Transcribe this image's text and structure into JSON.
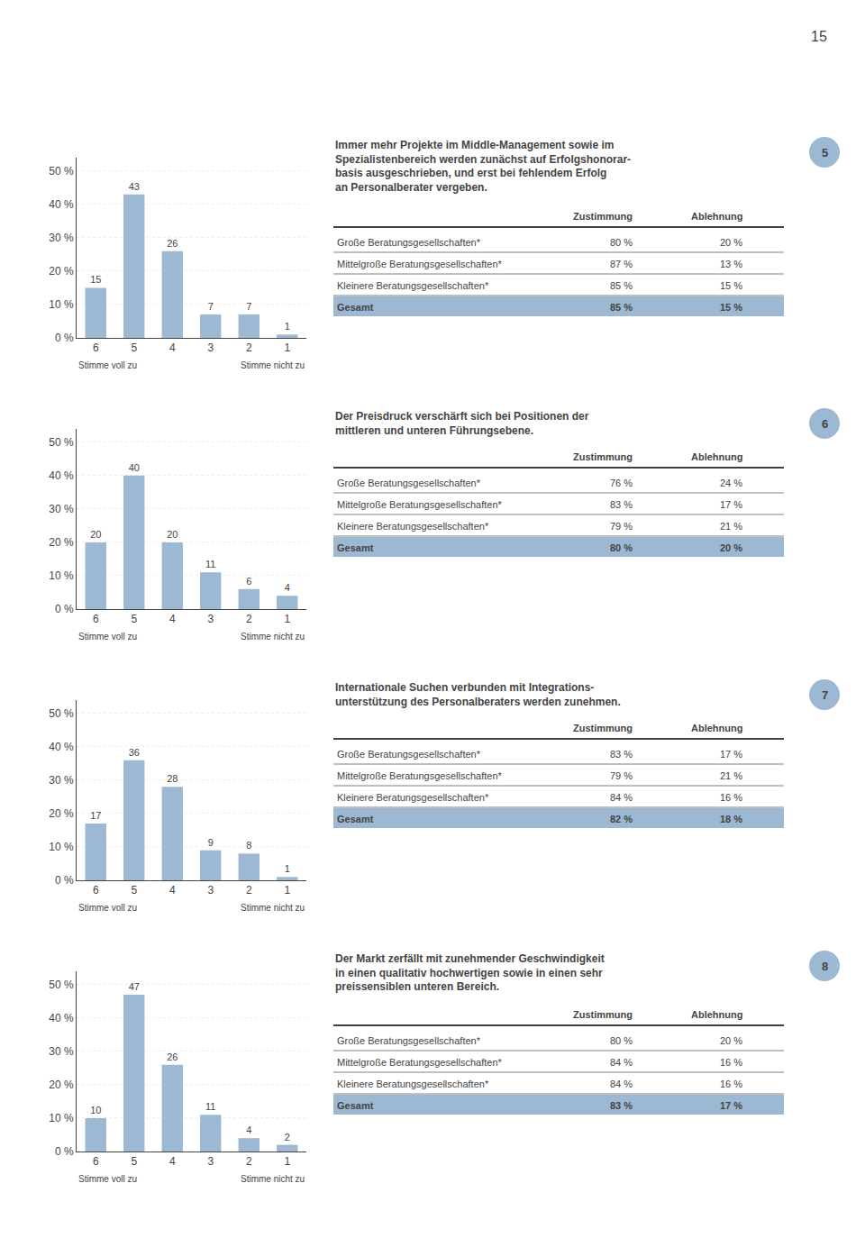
{
  "annotations": [
    "15"
  ],
  "chart_data": [
    {
      "type": "bar",
      "badge": "5",
      "title": "Immer mehr Projekte im Middle-Management sowie im\nSpezialistenbereich werden zunächst auf Erfolgshonorar-\nbasis ausgeschrieben, und erst bei fehlendem Erfolg\nan Personalberater vergeben.",
      "categories": [
        "6",
        "5",
        "4",
        "3",
        "2",
        "1"
      ],
      "values": [
        15,
        43,
        26,
        7,
        7,
        1
      ],
      "color": "#9DB8D2",
      "xlabel": [
        "Stimme voll zu",
        "Stimme nicht zu"
      ],
      "ylim": [
        0,
        54
      ],
      "yticks": [
        {
          "value": 0,
          "label": "0 %"
        },
        {
          "value": 10,
          "label": "10 %"
        },
        {
          "value": 20,
          "label": "20 %"
        },
        {
          "value": 30,
          "label": "30 %"
        },
        {
          "value": 40,
          "label": "40 %"
        },
        {
          "value": 50,
          "label": "50 %"
        }
      ],
      "grid": true,
      "data_labels": true,
      "table": {
        "header": [
          "Zustimmung",
          "Ablehnung"
        ],
        "rows": [
          [
            "Große Beratungsgesellschaften*",
            "80 %",
            "20 %"
          ],
          [
            "Mittelgroße Beratungsgesellschaften*",
            "87 %",
            "13 %"
          ],
          [
            "Kleinere Beratungsgesellschaften*",
            "85 %",
            "15 %"
          ],
          [
            "Gesamt",
            "85 %",
            "15 %"
          ]
        ]
      }
    },
    {
      "type": "bar",
      "badge": "6",
      "title": "Der Preisdruck verschärft sich bei Positionen der\nmittleren und unteren Führungsebene.",
      "categories": [
        "6",
        "5",
        "4",
        "3",
        "2",
        "1"
      ],
      "values": [
        20,
        40,
        20,
        11,
        6,
        4
      ],
      "color": "#9DB8D2",
      "xlabel": [
        "Stimme voll zu",
        "Stimme nicht zu"
      ],
      "ylim": [
        0,
        54
      ],
      "yticks": [
        {
          "value": 0,
          "label": "0 %"
        },
        {
          "value": 10,
          "label": "10 %"
        },
        {
          "value": 20,
          "label": "20 %"
        },
        {
          "value": 30,
          "label": "30 %"
        },
        {
          "value": 40,
          "label": "40 %"
        },
        {
          "value": 50,
          "label": "50 %"
        }
      ],
      "grid": true,
      "data_labels": true,
      "table": {
        "header": [
          "Zustimmung",
          "Ablehnung"
        ],
        "rows": [
          [
            "Große Beratungsgesellschaften*",
            "76 %",
            "24 %"
          ],
          [
            "Mittelgroße Beratungsgesellschaften*",
            "83 %",
            "17 %"
          ],
          [
            "Kleinere Beratungsgesellschaften*",
            "79 %",
            "21 %"
          ],
          [
            "Gesamt",
            "80 %",
            "20 %"
          ]
        ]
      }
    },
    {
      "type": "bar",
      "badge": "7",
      "title": "Internationale Suchen verbunden mit Integrations-\nunterstützung des Personalberaters werden zunehmen.",
      "categories": [
        "6",
        "5",
        "4",
        "3",
        "2",
        "1"
      ],
      "values": [
        17,
        36,
        28,
        9,
        8,
        1
      ],
      "color": "#9DB8D2",
      "xlabel": [
        "Stimme voll zu",
        "Stimme nicht zu"
      ],
      "ylim": [
        0,
        54
      ],
      "yticks": [
        {
          "value": 0,
          "label": "0 %"
        },
        {
          "value": 10,
          "label": "10 %"
        },
        {
          "value": 20,
          "label": "20 %"
        },
        {
          "value": 30,
          "label": "30 %"
        },
        {
          "value": 40,
          "label": "40 %"
        },
        {
          "value": 50,
          "label": "50 %"
        }
      ],
      "grid": true,
      "data_labels": true,
      "table": {
        "header": [
          "Zustimmung",
          "Ablehnung"
        ],
        "rows": [
          [
            "Große Beratungsgesellschaften*",
            "83 %",
            "17 %"
          ],
          [
            "Mittelgroße Beratungsgesellschaften*",
            "79 %",
            "21 %"
          ],
          [
            "Kleinere Beratungsgesellschaften*",
            "84 %",
            "16 %"
          ],
          [
            "Gesamt",
            "82 %",
            "18 %"
          ]
        ]
      }
    },
    {
      "type": "bar",
      "badge": "8",
      "title": "Der Markt zerfällt mit zunehmender Geschwindigkeit\nin einen qualitativ hochwertigen sowie in einen sehr\npreissensiblen unteren Bereich.",
      "categories": [
        "6",
        "5",
        "4",
        "3",
        "2",
        "1"
      ],
      "values": [
        10,
        47,
        26,
        11,
        4,
        2
      ],
      "color": "#9DB8D2",
      "xlabel": [
        "Stimme voll zu",
        "Stimme nicht zu"
      ],
      "ylim": [
        0,
        54
      ],
      "yticks": [
        {
          "value": 0,
          "label": "0 %"
        },
        {
          "value": 10,
          "label": "10 %"
        },
        {
          "value": 20,
          "label": "20 %"
        },
        {
          "value": 30,
          "label": "30 %"
        },
        {
          "value": 40,
          "label": "40 %"
        },
        {
          "value": 50,
          "label": "50 %"
        }
      ],
      "grid": true,
      "data_labels": true,
      "table": {
        "header": [
          "Zustimmung",
          "Ablehnung"
        ],
        "rows": [
          [
            "Große Beratungsgesellschaften*",
            "80 %",
            "20 %"
          ],
          [
            "Mittelgroße Beratungsgesellschaften*",
            "84 %",
            "16 %"
          ],
          [
            "Kleinere Beratungsgesellschaften*",
            "84 %",
            "16 %"
          ],
          [
            "Gesamt",
            "83 %",
            "17 %"
          ]
        ]
      }
    }
  ]
}
